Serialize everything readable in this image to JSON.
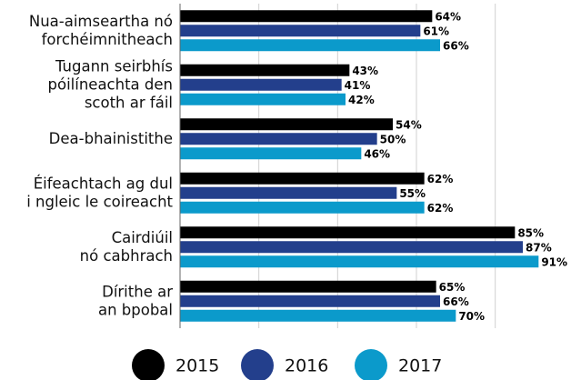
{
  "chart_data": {
    "type": "hbar",
    "categories": [
      "Nua-aimseartha nó\nforchéimnitheach",
      "Tugann seirbhís\npóilíneachta den\nscoth ar fáil",
      "Dea-bhainistithe",
      "Éifeachtach ag dul\ni ngleic le coireacht",
      "Cairdiúil\nnó cabhrach",
      "Dírithe ar\nan bpobal"
    ],
    "series": [
      {
        "name": "2015",
        "color": "#000000",
        "values": [
          64,
          43,
          54,
          62,
          85,
          65
        ],
        "value_labels": [
          "64%",
          "43%",
          "54%",
          "62%",
          "85%",
          "65%"
        ]
      },
      {
        "name": "2016",
        "color": "#233f8c",
        "values": [
          61,
          41,
          50,
          55,
          87,
          66
        ],
        "value_labels": [
          "61%",
          "41%",
          "50%",
          "55%",
          "87%",
          "66%"
        ]
      },
      {
        "name": "2017",
        "color": "#0b9acb",
        "values": [
          66,
          42,
          46,
          62,
          91,
          70
        ],
        "value_labels": [
          "66%",
          "42%",
          "46%",
          "62%",
          "91%",
          "70%"
        ]
      }
    ],
    "xlim": [
      0,
      99
    ],
    "xticks": [
      0,
      20,
      40,
      60,
      80
    ],
    "grid": true,
    "legend": "bottom"
  }
}
